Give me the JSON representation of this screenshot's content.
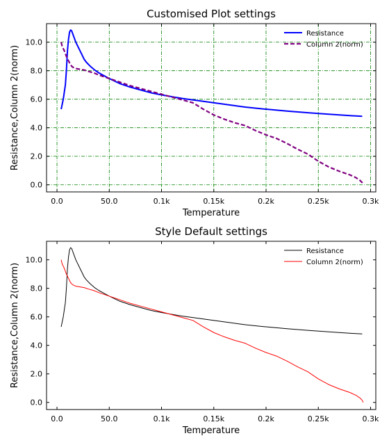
{
  "chart_data": [
    {
      "type": "line",
      "title": "Customised Plot settings",
      "xlabel": "Temperature",
      "ylabel": "Resistance,Column 2(norm)",
      "xlim": [
        -10,
        305
      ],
      "ylim": [
        -0.5,
        11.3
      ],
      "x_ticks": [
        {
          "value": 0,
          "label": "0.0"
        },
        {
          "value": 50,
          "label": "50.0"
        },
        {
          "value": 100,
          "label": "0.1k"
        },
        {
          "value": 150,
          "label": "0.15k"
        },
        {
          "value": 200,
          "label": "0.2k"
        },
        {
          "value": 250,
          "label": "0.25k"
        },
        {
          "value": 300,
          "label": "0.3k"
        }
      ],
      "y_ticks": [
        {
          "value": 0,
          "label": "0.0"
        },
        {
          "value": 2,
          "label": "2.0"
        },
        {
          "value": 4,
          "label": "4.0"
        },
        {
          "value": 6,
          "label": "6.0"
        },
        {
          "value": 8,
          "label": "8.0"
        },
        {
          "value": 10,
          "label": "10.0"
        }
      ],
      "grid": true,
      "grid_color": "#008000",
      "grid_style": "dash-dot",
      "legend_position": "top-right",
      "series": [
        {
          "name": "Resistance",
          "color": "#0000ff",
          "style": "solid",
          "width": 2,
          "points": [
            [
              4,
              5.3
            ],
            [
              6,
              6.0
            ],
            [
              8,
              7.0
            ],
            [
              9,
              8.0
            ],
            [
              10,
              9.4
            ],
            [
              11,
              10.2
            ],
            [
              12,
              10.7
            ],
            [
              13,
              10.85
            ],
            [
              14,
              10.8
            ],
            [
              16,
              10.4
            ],
            [
              18,
              10.0
            ],
            [
              20,
              9.7
            ],
            [
              22,
              9.4
            ],
            [
              24,
              9.1
            ],
            [
              26,
              8.8
            ],
            [
              28,
              8.6
            ],
            [
              32,
              8.3
            ],
            [
              36,
              8.05
            ],
            [
              40,
              7.85
            ],
            [
              45,
              7.65
            ],
            [
              50,
              7.45
            ],
            [
              60,
              7.1
            ],
            [
              70,
              6.85
            ],
            [
              80,
              6.65
            ],
            [
              90,
              6.45
            ],
            [
              100,
              6.3
            ],
            [
              120,
              6.05
            ],
            [
              140,
              5.85
            ],
            [
              160,
              5.65
            ],
            [
              180,
              5.45
            ],
            [
              200,
              5.3
            ],
            [
              220,
              5.17
            ],
            [
              240,
              5.05
            ],
            [
              260,
              4.95
            ],
            [
              280,
              4.85
            ],
            [
              292,
              4.8
            ]
          ]
        },
        {
          "name": "Column 2(norm)",
          "color": "#800080",
          "style": "dashed",
          "width": 2.2,
          "points": [
            [
              4,
              10.0
            ],
            [
              5,
              9.7
            ],
            [
              7,
              9.4
            ],
            [
              9,
              9.0
            ],
            [
              11,
              8.7
            ],
            [
              13,
              8.4
            ],
            [
              15,
              8.25
            ],
            [
              18,
              8.15
            ],
            [
              22,
              8.1
            ],
            [
              26,
              8.05
            ],
            [
              30,
              7.95
            ],
            [
              35,
              7.85
            ],
            [
              40,
              7.7
            ],
            [
              50,
              7.45
            ],
            [
              60,
              7.2
            ],
            [
              70,
              6.95
            ],
            [
              80,
              6.75
            ],
            [
              90,
              6.55
            ],
            [
              100,
              6.35
            ],
            [
              110,
              6.15
            ],
            [
              120,
              5.95
            ],
            [
              130,
              5.75
            ],
            [
              140,
              5.3
            ],
            [
              150,
              4.9
            ],
            [
              160,
              4.6
            ],
            [
              170,
              4.35
            ],
            [
              180,
              4.15
            ],
            [
              190,
              3.8
            ],
            [
              200,
              3.5
            ],
            [
              210,
              3.25
            ],
            [
              220,
              2.9
            ],
            [
              230,
              2.5
            ],
            [
              240,
              2.15
            ],
            [
              250,
              1.65
            ],
            [
              260,
              1.25
            ],
            [
              270,
              0.95
            ],
            [
              280,
              0.7
            ],
            [
              286,
              0.5
            ],
            [
              290,
              0.3
            ],
            [
              292,
              0.15
            ],
            [
              293,
              0.0
            ]
          ]
        }
      ]
    },
    {
      "type": "line",
      "title": "Style Default settings",
      "xlabel": "Temperature",
      "ylabel": "Resistance,Column 2(norm)",
      "xlim": [
        -10,
        305
      ],
      "ylim": [
        -0.5,
        11.3
      ],
      "x_ticks": [
        {
          "value": 0,
          "label": "0.0"
        },
        {
          "value": 50,
          "label": "50.0"
        },
        {
          "value": 100,
          "label": "0.1k"
        },
        {
          "value": 150,
          "label": "0.15k"
        },
        {
          "value": 200,
          "label": "0.2k"
        },
        {
          "value": 250,
          "label": "0.25k"
        },
        {
          "value": 300,
          "label": "0.3k"
        }
      ],
      "y_ticks": [
        {
          "value": 0,
          "label": "0.0"
        },
        {
          "value": 2,
          "label": "2.0"
        },
        {
          "value": 4,
          "label": "4.0"
        },
        {
          "value": 6,
          "label": "6.0"
        },
        {
          "value": 8,
          "label": "8.0"
        },
        {
          "value": 10,
          "label": "10.0"
        }
      ],
      "grid": false,
      "legend_position": "top-right",
      "series": [
        {
          "name": "Resistance",
          "color": "#000000",
          "style": "solid",
          "width": 1,
          "points": [
            [
              4,
              5.3
            ],
            [
              6,
              6.0
            ],
            [
              8,
              7.0
            ],
            [
              9,
              8.0
            ],
            [
              10,
              9.4
            ],
            [
              11,
              10.2
            ],
            [
              12,
              10.7
            ],
            [
              13,
              10.85
            ],
            [
              14,
              10.8
            ],
            [
              16,
              10.4
            ],
            [
              18,
              10.0
            ],
            [
              20,
              9.7
            ],
            [
              22,
              9.4
            ],
            [
              24,
              9.1
            ],
            [
              26,
              8.8
            ],
            [
              28,
              8.6
            ],
            [
              32,
              8.3
            ],
            [
              36,
              8.05
            ],
            [
              40,
              7.85
            ],
            [
              45,
              7.65
            ],
            [
              50,
              7.45
            ],
            [
              60,
              7.1
            ],
            [
              70,
              6.85
            ],
            [
              80,
              6.65
            ],
            [
              90,
              6.45
            ],
            [
              100,
              6.3
            ],
            [
              120,
              6.05
            ],
            [
              140,
              5.85
            ],
            [
              160,
              5.65
            ],
            [
              180,
              5.45
            ],
            [
              200,
              5.3
            ],
            [
              220,
              5.17
            ],
            [
              240,
              5.05
            ],
            [
              260,
              4.95
            ],
            [
              280,
              4.85
            ],
            [
              292,
              4.8
            ]
          ]
        },
        {
          "name": "Column 2(norm)",
          "color": "#ff0000",
          "style": "solid",
          "width": 1,
          "points": [
            [
              4,
              10.0
            ],
            [
              5,
              9.7
            ],
            [
              7,
              9.4
            ],
            [
              9,
              9.0
            ],
            [
              11,
              8.7
            ],
            [
              13,
              8.4
            ],
            [
              15,
              8.25
            ],
            [
              18,
              8.15
            ],
            [
              22,
              8.1
            ],
            [
              26,
              8.05
            ],
            [
              30,
              7.95
            ],
            [
              35,
              7.85
            ],
            [
              40,
              7.7
            ],
            [
              50,
              7.45
            ],
            [
              60,
              7.2
            ],
            [
              70,
              6.95
            ],
            [
              80,
              6.75
            ],
            [
              90,
              6.55
            ],
            [
              100,
              6.35
            ],
            [
              110,
              6.15
            ],
            [
              120,
              5.95
            ],
            [
              130,
              5.75
            ],
            [
              140,
              5.3
            ],
            [
              150,
              4.9
            ],
            [
              160,
              4.6
            ],
            [
              170,
              4.35
            ],
            [
              180,
              4.15
            ],
            [
              190,
              3.8
            ],
            [
              200,
              3.5
            ],
            [
              210,
              3.25
            ],
            [
              220,
              2.9
            ],
            [
              230,
              2.5
            ],
            [
              240,
              2.15
            ],
            [
              250,
              1.65
            ],
            [
              260,
              1.25
            ],
            [
              270,
              0.95
            ],
            [
              280,
              0.7
            ],
            [
              286,
              0.5
            ],
            [
              290,
              0.3
            ],
            [
              292,
              0.15
            ],
            [
              293,
              0.0
            ]
          ]
        }
      ]
    }
  ]
}
